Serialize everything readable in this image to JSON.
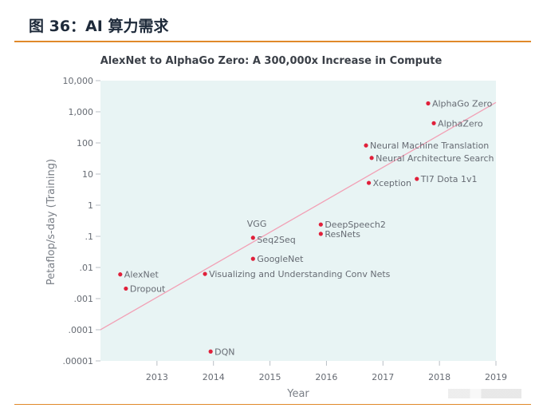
{
  "figure_label": "图 36：AI 算力需求",
  "colors": {
    "accent_rule": "#e0892a",
    "plot_bg": "#e8f4f4",
    "trend_line": "#f2a0b5",
    "point": "#e0203a",
    "text": "#666b73"
  },
  "chart_data": {
    "type": "scatter",
    "title": "AlexNet to AlphaGo Zero: A 300,000x Increase in Compute",
    "xlabel": "Year",
    "ylabel": "Petaflop/s-day (Training)",
    "yscale": "log",
    "xlim": [
      2012.0,
      2019.0
    ],
    "ylim": [
      1e-05,
      10000
    ],
    "x_ticks": [
      "2013",
      "2014",
      "2015",
      "2016",
      "2017",
      "2018",
      "2019"
    ],
    "y_ticks": [
      ".00001",
      ".0001",
      ".001",
      ".01",
      ".1",
      "1",
      "10",
      "100",
      "1,000",
      "10,000"
    ],
    "trend_line": {
      "from": [
        2012.0,
        0.0001
      ],
      "to": [
        2019.0,
        2000
      ]
    },
    "points": [
      {
        "label": "AlexNet",
        "x": 2012.35,
        "y": 0.006
      },
      {
        "label": "Dropout",
        "x": 2012.45,
        "y": 0.0021
      },
      {
        "label": "DQN",
        "x": 2013.95,
        "y": 2e-05
      },
      {
        "label": "Visualizing and Understanding Conv Nets",
        "x": 2013.85,
        "y": 0.0062
      },
      {
        "label": "VGG",
        "x": 2014.65,
        "y": 0.1
      },
      {
        "label": "Seq2Seq",
        "x": 2014.7,
        "y": 0.09
      },
      {
        "label": "GoogleNet",
        "x": 2014.7,
        "y": 0.019
      },
      {
        "label": "DeepSpeech2",
        "x": 2015.9,
        "y": 0.24
      },
      {
        "label": "ResNets",
        "x": 2015.9,
        "y": 0.12
      },
      {
        "label": "Neural Machine Translation",
        "x": 2016.7,
        "y": 83
      },
      {
        "label": "Neural Architecture Search",
        "x": 2016.8,
        "y": 33
      },
      {
        "label": "Xception",
        "x": 2016.75,
        "y": 5.2
      },
      {
        "label": "TI7 Dota 1v1",
        "x": 2017.6,
        "y": 7
      },
      {
        "label": "AlphaGo Zero",
        "x": 2017.8,
        "y": 1860
      },
      {
        "label": "AlphaZero",
        "x": 2017.9,
        "y": 430
      }
    ]
  }
}
